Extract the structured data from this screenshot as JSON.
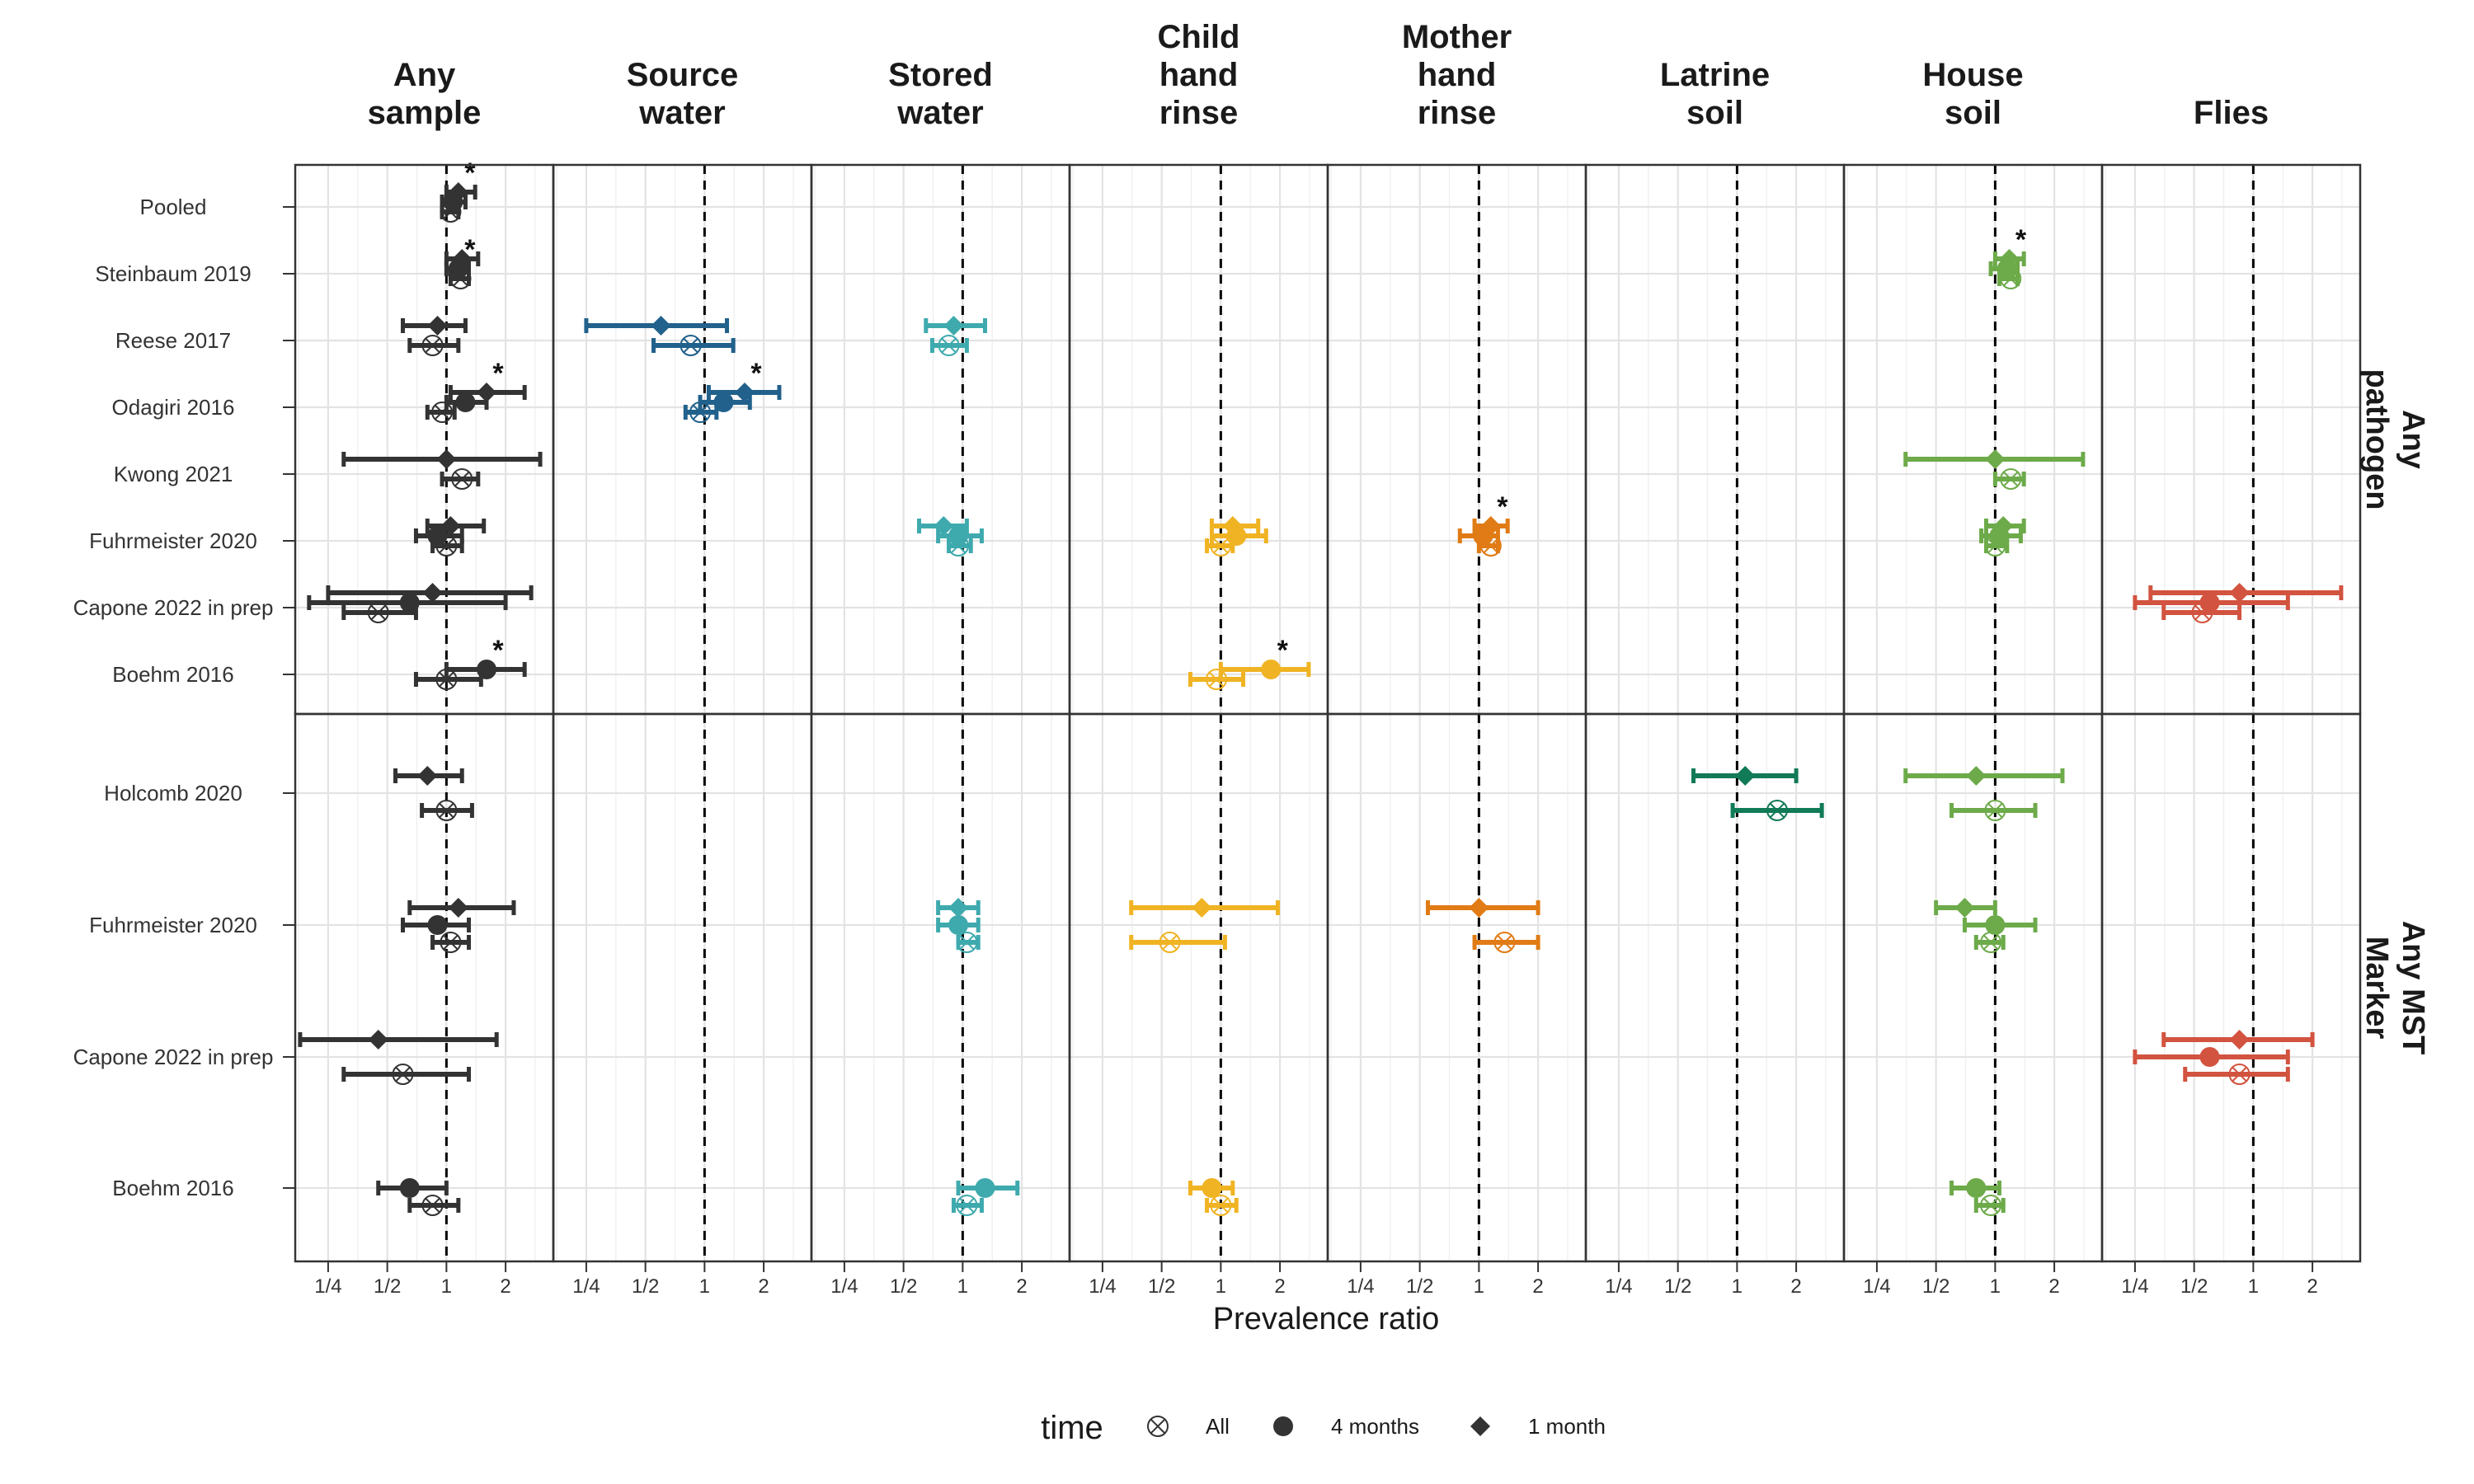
{
  "chart_data": {
    "type": "forest",
    "xlabel": "Prevalence ratio",
    "x_scale": "log2",
    "xlim": [
      0.17,
      3.5
    ],
    "x_ticks": [
      0.25,
      0.5,
      1,
      2
    ],
    "x_tick_labels": [
      "1/4",
      "1/2",
      "1",
      "2"
    ],
    "reference_line": 1,
    "grid": true,
    "legend": {
      "title": "time",
      "position": "bottom",
      "entries": [
        {
          "label": "All",
          "shape": "circle-x"
        },
        {
          "label": "4 months",
          "shape": "circle"
        },
        {
          "label": "1 month",
          "shape": "diamond"
        }
      ]
    },
    "columns": [
      {
        "key": "any",
        "title": [
          "Any",
          "sample"
        ],
        "color": "#333333"
      },
      {
        "key": "source",
        "title": [
          "Source",
          "water"
        ],
        "color": "#21618C"
      },
      {
        "key": "stored",
        "title": [
          "Stored",
          "water"
        ],
        "color": "#3FAAAE"
      },
      {
        "key": "child",
        "title": [
          "Child",
          "hand",
          "rinse"
        ],
        "color": "#F0B323"
      },
      {
        "key": "mother",
        "title": [
          "Mother",
          "hand",
          "rinse"
        ],
        "color": "#E07B15"
      },
      {
        "key": "latrine",
        "title": [
          "Latrine",
          "soil"
        ],
        "color": "#117A56"
      },
      {
        "key": "house",
        "title": [
          "House",
          "soil"
        ],
        "color": "#6DAA4A"
      },
      {
        "key": "flies",
        "title": [
          "Flies"
        ],
        "color": "#D2533F"
      }
    ],
    "rows": [
      {
        "key": "pathogen",
        "label": [
          "Any",
          "pathogen"
        ],
        "studies": [
          "Pooled",
          "Steinbaum 2019",
          "Reese 2017",
          "Odagiri 2016",
          "Kwong 2021",
          "Fuhrmeister 2020",
          "Capone 2022 in prep",
          "Boehm 2016"
        ]
      },
      {
        "key": "mst",
        "label": [
          "Any MST",
          "Marker"
        ],
        "studies": [
          "Holcomb 2020",
          "Fuhrmeister 2020",
          "Capone 2022 in prep",
          "Boehm 2016"
        ]
      }
    ],
    "points": [
      {
        "row": "pathogen",
        "study": "Pooled",
        "col": "any",
        "time": "1 month",
        "pr": 1.15,
        "lo": 1.0,
        "hi": 1.4,
        "sig": true
      },
      {
        "row": "pathogen",
        "study": "Pooled",
        "col": "any",
        "time": "4 months",
        "pr": 1.08,
        "lo": 0.95,
        "hi": 1.25,
        "sig": false
      },
      {
        "row": "pathogen",
        "study": "Pooled",
        "col": "any",
        "time": "All",
        "pr": 1.05,
        "lo": 0.95,
        "hi": 1.15,
        "sig": false
      },
      {
        "row": "pathogen",
        "study": "Steinbaum 2019",
        "col": "any",
        "time": "1 month",
        "pr": 1.2,
        "lo": 1.0,
        "hi": 1.45,
        "sig": false
      },
      {
        "row": "pathogen",
        "study": "Steinbaum 2019",
        "col": "any",
        "time": "4 months",
        "pr": 1.15,
        "lo": 1.0,
        "hi": 1.3,
        "sig": true
      },
      {
        "row": "pathogen",
        "study": "Steinbaum 2019",
        "col": "any",
        "time": "All",
        "pr": 1.18,
        "lo": 1.05,
        "hi": 1.3,
        "sig": false
      },
      {
        "row": "pathogen",
        "study": "Steinbaum 2019",
        "col": "house",
        "time": "1 month",
        "pr": 1.18,
        "lo": 1.0,
        "hi": 1.4,
        "sig": true
      },
      {
        "row": "pathogen",
        "study": "Steinbaum 2019",
        "col": "house",
        "time": "4 months",
        "pr": 1.15,
        "lo": 0.95,
        "hi": 1.3,
        "sig": false
      },
      {
        "row": "pathogen",
        "study": "Steinbaum 2019",
        "col": "house",
        "time": "All",
        "pr": 1.2,
        "lo": 1.05,
        "hi": 1.3,
        "sig": false
      },
      {
        "row": "pathogen",
        "study": "Reese 2017",
        "col": "any",
        "time": "1 month",
        "pr": 0.9,
        "lo": 0.6,
        "hi": 1.25,
        "sig": false
      },
      {
        "row": "pathogen",
        "study": "Reese 2017",
        "col": "any",
        "time": "All",
        "pr": 0.85,
        "lo": 0.65,
        "hi": 1.15,
        "sig": false
      },
      {
        "row": "pathogen",
        "study": "Reese 2017",
        "col": "source",
        "time": "1 month",
        "pr": 0.6,
        "lo": 0.25,
        "hi": 1.3,
        "sig": false
      },
      {
        "row": "pathogen",
        "study": "Reese 2017",
        "col": "source",
        "time": "All",
        "pr": 0.85,
        "lo": 0.55,
        "hi": 1.4,
        "sig": false
      },
      {
        "row": "pathogen",
        "study": "Reese 2017",
        "col": "stored",
        "time": "1 month",
        "pr": 0.9,
        "lo": 0.65,
        "hi": 1.3,
        "sig": false
      },
      {
        "row": "pathogen",
        "study": "Reese 2017",
        "col": "stored",
        "time": "All",
        "pr": 0.85,
        "lo": 0.7,
        "hi": 1.05,
        "sig": false
      },
      {
        "row": "pathogen",
        "study": "Odagiri 2016",
        "col": "any",
        "time": "1 month",
        "pr": 1.6,
        "lo": 1.05,
        "hi": 2.5,
        "sig": true
      },
      {
        "row": "pathogen",
        "study": "Odagiri 2016",
        "col": "any",
        "time": "4 months",
        "pr": 1.25,
        "lo": 1.0,
        "hi": 1.6,
        "sig": false
      },
      {
        "row": "pathogen",
        "study": "Odagiri 2016",
        "col": "any",
        "time": "All",
        "pr": 0.95,
        "lo": 0.8,
        "hi": 1.1,
        "sig": false
      },
      {
        "row": "pathogen",
        "study": "Odagiri 2016",
        "col": "source",
        "time": "1 month",
        "pr": 1.6,
        "lo": 1.05,
        "hi": 2.4,
        "sig": true
      },
      {
        "row": "pathogen",
        "study": "Odagiri 2016",
        "col": "source",
        "time": "4 months",
        "pr": 1.25,
        "lo": 0.95,
        "hi": 1.7,
        "sig": false
      },
      {
        "row": "pathogen",
        "study": "Odagiri 2016",
        "col": "source",
        "time": "All",
        "pr": 0.95,
        "lo": 0.8,
        "hi": 1.15,
        "sig": false
      },
      {
        "row": "pathogen",
        "study": "Kwong 2021",
        "col": "any",
        "time": "1 month",
        "pr": 1.0,
        "lo": 0.3,
        "hi": 3.0,
        "sig": false
      },
      {
        "row": "pathogen",
        "study": "Kwong 2021",
        "col": "any",
        "time": "All",
        "pr": 1.2,
        "lo": 0.95,
        "hi": 1.45,
        "sig": false
      },
      {
        "row": "pathogen",
        "study": "Kwong 2021",
        "col": "house",
        "time": "1 month",
        "pr": 1.0,
        "lo": 0.35,
        "hi": 2.8,
        "sig": false
      },
      {
        "row": "pathogen",
        "study": "Kwong 2021",
        "col": "house",
        "time": "All",
        "pr": 1.2,
        "lo": 1.0,
        "hi": 1.4,
        "sig": false
      },
      {
        "row": "pathogen",
        "study": "Fuhrmeister 2020",
        "col": "any",
        "time": "1 month",
        "pr": 1.05,
        "lo": 0.8,
        "hi": 1.55,
        "sig": false
      },
      {
        "row": "pathogen",
        "study": "Fuhrmeister 2020",
        "col": "any",
        "time": "4 months",
        "pr": 0.9,
        "lo": 0.7,
        "hi": 1.2,
        "sig": false
      },
      {
        "row": "pathogen",
        "study": "Fuhrmeister 2020",
        "col": "any",
        "time": "All",
        "pr": 1.0,
        "lo": 0.85,
        "hi": 1.2,
        "sig": false
      },
      {
        "row": "pathogen",
        "study": "Fuhrmeister 2020",
        "col": "stored",
        "time": "1 month",
        "pr": 0.8,
        "lo": 0.6,
        "hi": 1.05,
        "sig": false
      },
      {
        "row": "pathogen",
        "study": "Fuhrmeister 2020",
        "col": "stored",
        "time": "4 months",
        "pr": 0.95,
        "lo": 0.75,
        "hi": 1.25,
        "sig": false
      },
      {
        "row": "pathogen",
        "study": "Fuhrmeister 2020",
        "col": "stored",
        "time": "All",
        "pr": 0.95,
        "lo": 0.85,
        "hi": 1.1,
        "sig": false
      },
      {
        "row": "pathogen",
        "study": "Fuhrmeister 2020",
        "col": "child",
        "time": "1 month",
        "pr": 1.15,
        "lo": 0.9,
        "hi": 1.55,
        "sig": false
      },
      {
        "row": "pathogen",
        "study": "Fuhrmeister 2020",
        "col": "child",
        "time": "4 months",
        "pr": 1.2,
        "lo": 0.9,
        "hi": 1.7,
        "sig": false
      },
      {
        "row": "pathogen",
        "study": "Fuhrmeister 2020",
        "col": "child",
        "time": "All",
        "pr": 1.0,
        "lo": 0.85,
        "hi": 1.15,
        "sig": false
      },
      {
        "row": "pathogen",
        "study": "Fuhrmeister 2020",
        "col": "mother",
        "time": "1 month",
        "pr": 1.15,
        "lo": 0.95,
        "hi": 1.4,
        "sig": true
      },
      {
        "row": "pathogen",
        "study": "Fuhrmeister 2020",
        "col": "mother",
        "time": "4 months",
        "pr": 1.05,
        "lo": 0.8,
        "hi": 1.25,
        "sig": false
      },
      {
        "row": "pathogen",
        "study": "Fuhrmeister 2020",
        "col": "mother",
        "time": "All",
        "pr": 1.15,
        "lo": 1.0,
        "hi": 1.25,
        "sig": false
      },
      {
        "row": "pathogen",
        "study": "Fuhrmeister 2020",
        "col": "house",
        "time": "1 month",
        "pr": 1.1,
        "lo": 0.9,
        "hi": 1.4,
        "sig": false
      },
      {
        "row": "pathogen",
        "study": "Fuhrmeister 2020",
        "col": "house",
        "time": "4 months",
        "pr": 1.05,
        "lo": 0.85,
        "hi": 1.35,
        "sig": false
      },
      {
        "row": "pathogen",
        "study": "Fuhrmeister 2020",
        "col": "house",
        "time": "All",
        "pr": 1.0,
        "lo": 0.9,
        "hi": 1.15,
        "sig": false
      },
      {
        "row": "pathogen",
        "study": "Capone 2022 in prep",
        "col": "any",
        "time": "1 month",
        "pr": 0.85,
        "lo": 0.25,
        "hi": 2.7,
        "sig": false
      },
      {
        "row": "pathogen",
        "study": "Capone 2022 in prep",
        "col": "any",
        "time": "4 months",
        "pr": 0.65,
        "lo": 0.2,
        "hi": 2.0,
        "sig": false
      },
      {
        "row": "pathogen",
        "study": "Capone 2022 in prep",
        "col": "any",
        "time": "All",
        "pr": 0.45,
        "lo": 0.3,
        "hi": 0.7,
        "sig": false
      },
      {
        "row": "pathogen",
        "study": "Capone 2022 in prep",
        "col": "flies",
        "time": "1 month",
        "pr": 0.85,
        "lo": 0.3,
        "hi": 2.8,
        "sig": false
      },
      {
        "row": "pathogen",
        "study": "Capone 2022 in prep",
        "col": "flies",
        "time": "4 months",
        "pr": 0.6,
        "lo": 0.25,
        "hi": 1.5,
        "sig": false
      },
      {
        "row": "pathogen",
        "study": "Capone 2022 in prep",
        "col": "flies",
        "time": "All",
        "pr": 0.55,
        "lo": 0.35,
        "hi": 0.85,
        "sig": false
      },
      {
        "row": "pathogen",
        "study": "Boehm 2016",
        "col": "any",
        "time": "4 months",
        "pr": 1.6,
        "lo": 1.0,
        "hi": 2.5,
        "sig": true
      },
      {
        "row": "pathogen",
        "study": "Boehm 2016",
        "col": "any",
        "time": "All",
        "pr": 1.0,
        "lo": 0.7,
        "hi": 1.5,
        "sig": false
      },
      {
        "row": "pathogen",
        "study": "Boehm 2016",
        "col": "child",
        "time": "4 months",
        "pr": 1.8,
        "lo": 1.0,
        "hi": 2.8,
        "sig": true
      },
      {
        "row": "pathogen",
        "study": "Boehm 2016",
        "col": "child",
        "time": "All",
        "pr": 0.95,
        "lo": 0.7,
        "hi": 1.3,
        "sig": false
      },
      {
        "row": "mst",
        "study": "Holcomb 2020",
        "col": "any",
        "time": "1 month",
        "pr": 0.8,
        "lo": 0.55,
        "hi": 1.2,
        "sig": false
      },
      {
        "row": "mst",
        "study": "Holcomb 2020",
        "col": "any",
        "time": "All",
        "pr": 1.0,
        "lo": 0.75,
        "hi": 1.35,
        "sig": false
      },
      {
        "row": "mst",
        "study": "Holcomb 2020",
        "col": "latrine",
        "time": "1 month",
        "pr": 1.1,
        "lo": 0.6,
        "hi": 2.0,
        "sig": false
      },
      {
        "row": "mst",
        "study": "Holcomb 2020",
        "col": "latrine",
        "time": "All",
        "pr": 1.6,
        "lo": 0.95,
        "hi": 2.7,
        "sig": false
      },
      {
        "row": "mst",
        "study": "Holcomb 2020",
        "col": "house",
        "time": "1 month",
        "pr": 0.8,
        "lo": 0.35,
        "hi": 2.2,
        "sig": false
      },
      {
        "row": "mst",
        "study": "Holcomb 2020",
        "col": "house",
        "time": "All",
        "pr": 1.0,
        "lo": 0.6,
        "hi": 1.6,
        "sig": false
      },
      {
        "row": "mst",
        "study": "Fuhrmeister 2020",
        "col": "any",
        "time": "1 month",
        "pr": 1.15,
        "lo": 0.65,
        "hi": 2.2,
        "sig": false
      },
      {
        "row": "mst",
        "study": "Fuhrmeister 2020",
        "col": "any",
        "time": "4 months",
        "pr": 0.9,
        "lo": 0.6,
        "hi": 1.3,
        "sig": false
      },
      {
        "row": "mst",
        "study": "Fuhrmeister 2020",
        "col": "any",
        "time": "All",
        "pr": 1.05,
        "lo": 0.85,
        "hi": 1.3,
        "sig": false
      },
      {
        "row": "mst",
        "study": "Fuhrmeister 2020",
        "col": "stored",
        "time": "1 month",
        "pr": 0.95,
        "lo": 0.75,
        "hi": 1.2,
        "sig": false
      },
      {
        "row": "mst",
        "study": "Fuhrmeister 2020",
        "col": "stored",
        "time": "4 months",
        "pr": 0.95,
        "lo": 0.75,
        "hi": 1.2,
        "sig": false
      },
      {
        "row": "mst",
        "study": "Fuhrmeister 2020",
        "col": "stored",
        "time": "All",
        "pr": 1.05,
        "lo": 0.95,
        "hi": 1.2,
        "sig": false
      },
      {
        "row": "mst",
        "study": "Fuhrmeister 2020",
        "col": "child",
        "time": "1 month",
        "pr": 0.8,
        "lo": 0.35,
        "hi": 1.95,
        "sig": false
      },
      {
        "row": "mst",
        "study": "Fuhrmeister 2020",
        "col": "child",
        "time": "All",
        "pr": 0.55,
        "lo": 0.35,
        "hi": 1.05,
        "sig": false
      },
      {
        "row": "mst",
        "study": "Fuhrmeister 2020",
        "col": "mother",
        "time": "1 month",
        "pr": 1.0,
        "lo": 0.55,
        "hi": 2.0,
        "sig": false
      },
      {
        "row": "mst",
        "study": "Fuhrmeister 2020",
        "col": "mother",
        "time": "All",
        "pr": 1.35,
        "lo": 0.95,
        "hi": 2.0,
        "sig": false
      },
      {
        "row": "mst",
        "study": "Fuhrmeister 2020",
        "col": "house",
        "time": "1 month",
        "pr": 0.7,
        "lo": 0.5,
        "hi": 1.0,
        "sig": false
      },
      {
        "row": "mst",
        "study": "Fuhrmeister 2020",
        "col": "house",
        "time": "4 months",
        "pr": 1.0,
        "lo": 0.7,
        "hi": 1.6,
        "sig": false
      },
      {
        "row": "mst",
        "study": "Fuhrmeister 2020",
        "col": "house",
        "time": "All",
        "pr": 0.95,
        "lo": 0.8,
        "hi": 1.1,
        "sig": false
      },
      {
        "row": "mst",
        "study": "Capone 2022 in prep",
        "col": "any",
        "time": "1 month",
        "pr": 0.45,
        "lo": 0.18,
        "hi": 1.8,
        "sig": false
      },
      {
        "row": "mst",
        "study": "Capone 2022 in prep",
        "col": "any",
        "time": "All",
        "pr": 0.6,
        "lo": 0.3,
        "hi": 1.3,
        "sig": false
      },
      {
        "row": "mst",
        "study": "Capone 2022 in prep",
        "col": "flies",
        "time": "1 month",
        "pr": 0.85,
        "lo": 0.35,
        "hi": 2.0,
        "sig": false
      },
      {
        "row": "mst",
        "study": "Capone 2022 in prep",
        "col": "flies",
        "time": "4 months",
        "pr": 0.6,
        "lo": 0.25,
        "hi": 1.5,
        "sig": false
      },
      {
        "row": "mst",
        "study": "Capone 2022 in prep",
        "col": "flies",
        "time": "All",
        "pr": 0.85,
        "lo": 0.45,
        "hi": 1.5,
        "sig": false
      },
      {
        "row": "mst",
        "study": "Boehm 2016",
        "col": "any",
        "time": "4 months",
        "pr": 0.65,
        "lo": 0.45,
        "hi": 1.0,
        "sig": false
      },
      {
        "row": "mst",
        "study": "Boehm 2016",
        "col": "any",
        "time": "All",
        "pr": 0.85,
        "lo": 0.65,
        "hi": 1.15,
        "sig": false
      },
      {
        "row": "mst",
        "study": "Boehm 2016",
        "col": "stored",
        "time": "4 months",
        "pr": 1.3,
        "lo": 0.95,
        "hi": 1.9,
        "sig": false
      },
      {
        "row": "mst",
        "study": "Boehm 2016",
        "col": "stored",
        "time": "All",
        "pr": 1.05,
        "lo": 0.9,
        "hi": 1.25,
        "sig": false
      },
      {
        "row": "mst",
        "study": "Boehm 2016",
        "col": "child",
        "time": "4 months",
        "pr": 0.9,
        "lo": 0.7,
        "hi": 1.15,
        "sig": false
      },
      {
        "row": "mst",
        "study": "Boehm 2016",
        "col": "child",
        "time": "All",
        "pr": 1.0,
        "lo": 0.85,
        "hi": 1.2,
        "sig": false
      },
      {
        "row": "mst",
        "study": "Boehm 2016",
        "col": "house",
        "time": "4 months",
        "pr": 0.8,
        "lo": 0.6,
        "hi": 1.05,
        "sig": false
      },
      {
        "row": "mst",
        "study": "Boehm 2016",
        "col": "house",
        "time": "All",
        "pr": 0.95,
        "lo": 0.8,
        "hi": 1.1,
        "sig": false
      }
    ]
  }
}
